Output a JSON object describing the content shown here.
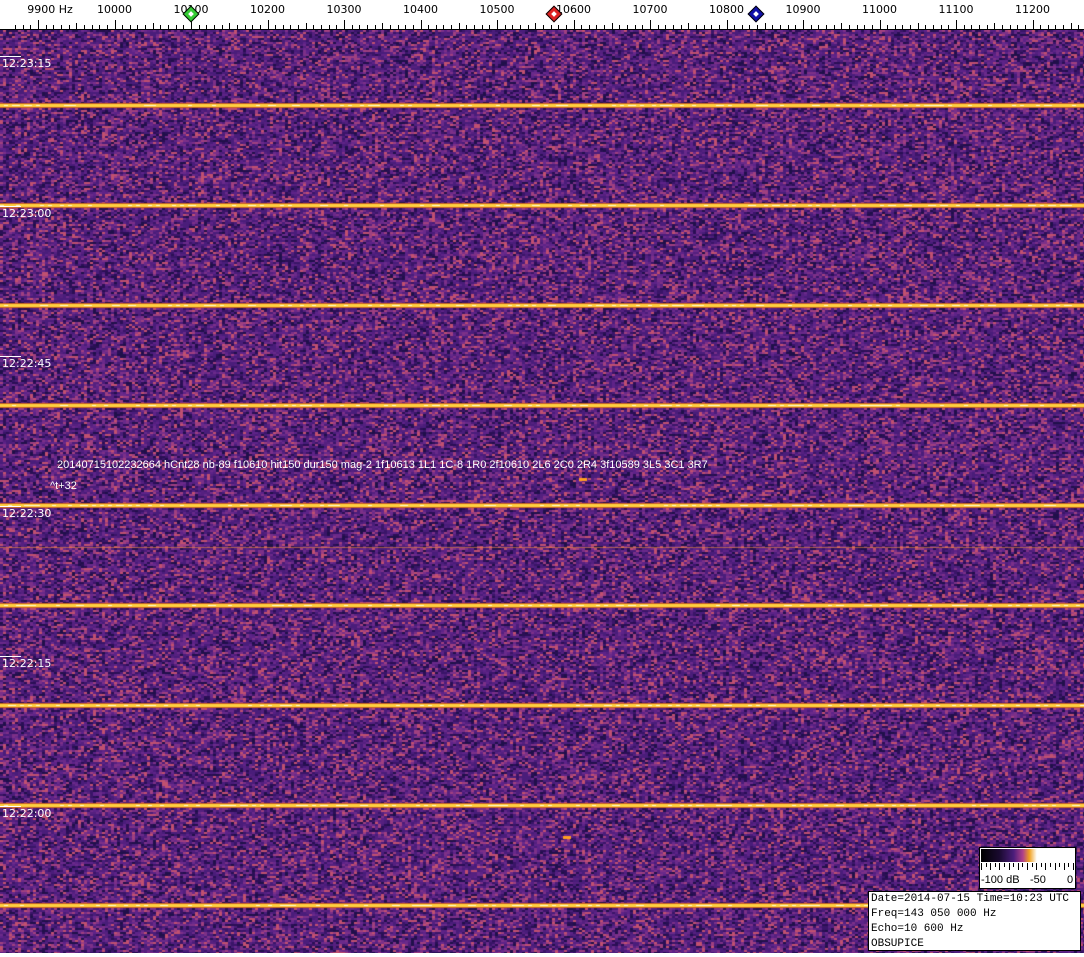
{
  "chart_data": {
    "type": "heatmap",
    "title": "",
    "x_axis": {
      "unit": "Hz",
      "ticks": [
        "9900 Hz",
        "10000",
        "10100",
        "10200",
        "10300",
        "10400",
        "10500",
        "10600",
        "10700",
        "10800",
        "10900",
        "11000",
        "11100",
        "11200"
      ],
      "range": [
        9870,
        11270
      ]
    },
    "y_axis": {
      "ticks": [
        "12:23:15",
        "12:23:00",
        "12:22:45",
        "12:22:30",
        "12:22:15",
        "12:22:00"
      ]
    },
    "markers": [
      {
        "name": "green",
        "freq": 10100,
        "color": "#33cc33"
      },
      {
        "name": "red",
        "freq": 10575,
        "color": "#dd2222"
      },
      {
        "name": "blue",
        "freq": 10838,
        "color": "#1111aa"
      }
    ],
    "colorbar": {
      "labels": [
        "-100 dB",
        "-50",
        "0"
      ],
      "range_db": [
        -100,
        0
      ]
    },
    "background_color": "#4a1d7a",
    "line_color": "#ffd040"
  },
  "event": {
    "line1": "20140715102232664 hCnt28 nb-89 f10610 hit150 dur150 mag-2 1f10613 1L1 1C-8 1R0 2f10610 2L6 2C0 2R4 3f10589 3L5 3C1 3R7",
    "line2": "^t+32"
  },
  "info": {
    "date": "Date=2014-07-15 Time=10:23 UTC",
    "freq": "Freq=143 050 000 Hz",
    "echo": "Echo=10 600 Hz",
    "station": "OBSUPICE"
  }
}
